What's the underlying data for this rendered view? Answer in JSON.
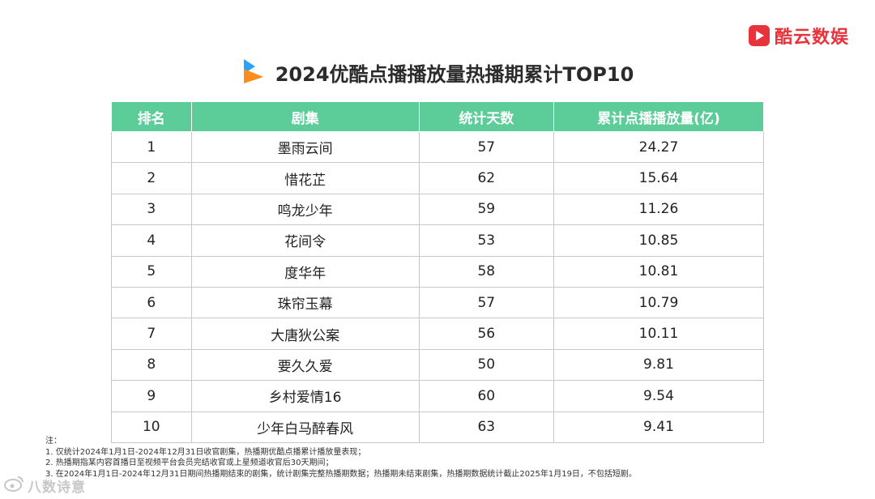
{
  "brand": {
    "name": "酷云数娱",
    "color": "#e8323c",
    "icon": "play-logo-icon"
  },
  "title": "2024优酷点播播放量热播期累计TOP10",
  "table": {
    "headers": [
      "排名",
      "剧集",
      "统计天数",
      "累计点播播放量(亿)"
    ],
    "header_color": "#5ccc98",
    "rows": [
      [
        "1",
        "墨雨云间",
        "57",
        "24.27"
      ],
      [
        "2",
        "惜花芷",
        "62",
        "15.64"
      ],
      [
        "3",
        "鸣龙少年",
        "59",
        "11.26"
      ],
      [
        "4",
        "花间令",
        "53",
        "10.85"
      ],
      [
        "5",
        "度华年",
        "58",
        "10.81"
      ],
      [
        "6",
        "珠帘玉幕",
        "57",
        "10.79"
      ],
      [
        "7",
        "大唐狄公案",
        "56",
        "10.11"
      ],
      [
        "8",
        "要久久爱",
        "50",
        "9.81"
      ],
      [
        "9",
        "乡村爱情16",
        "60",
        "9.54"
      ],
      [
        "10",
        "少年白马醉春风",
        "63",
        "9.41"
      ]
    ]
  },
  "notes": [
    "注：",
    "1. 仅统计2024年1月1日-2024年12月31日收官剧集，热播期优酷点播累计播放量表现；",
    "2. 热播期指某内容首播日至视频平台会员完结收官或上星频道收官后30天期间；",
    "3. 在2024年1月1日-2024年12月31日期间热播期结束的剧集，统计剧集完整热播期数据；热播期未结束剧集，热播期数据统计截止2025年1月19日，不包括短剧。"
  ],
  "watermark": {
    "text": "八数诗意",
    "icon": "weibo-logo-icon"
  }
}
